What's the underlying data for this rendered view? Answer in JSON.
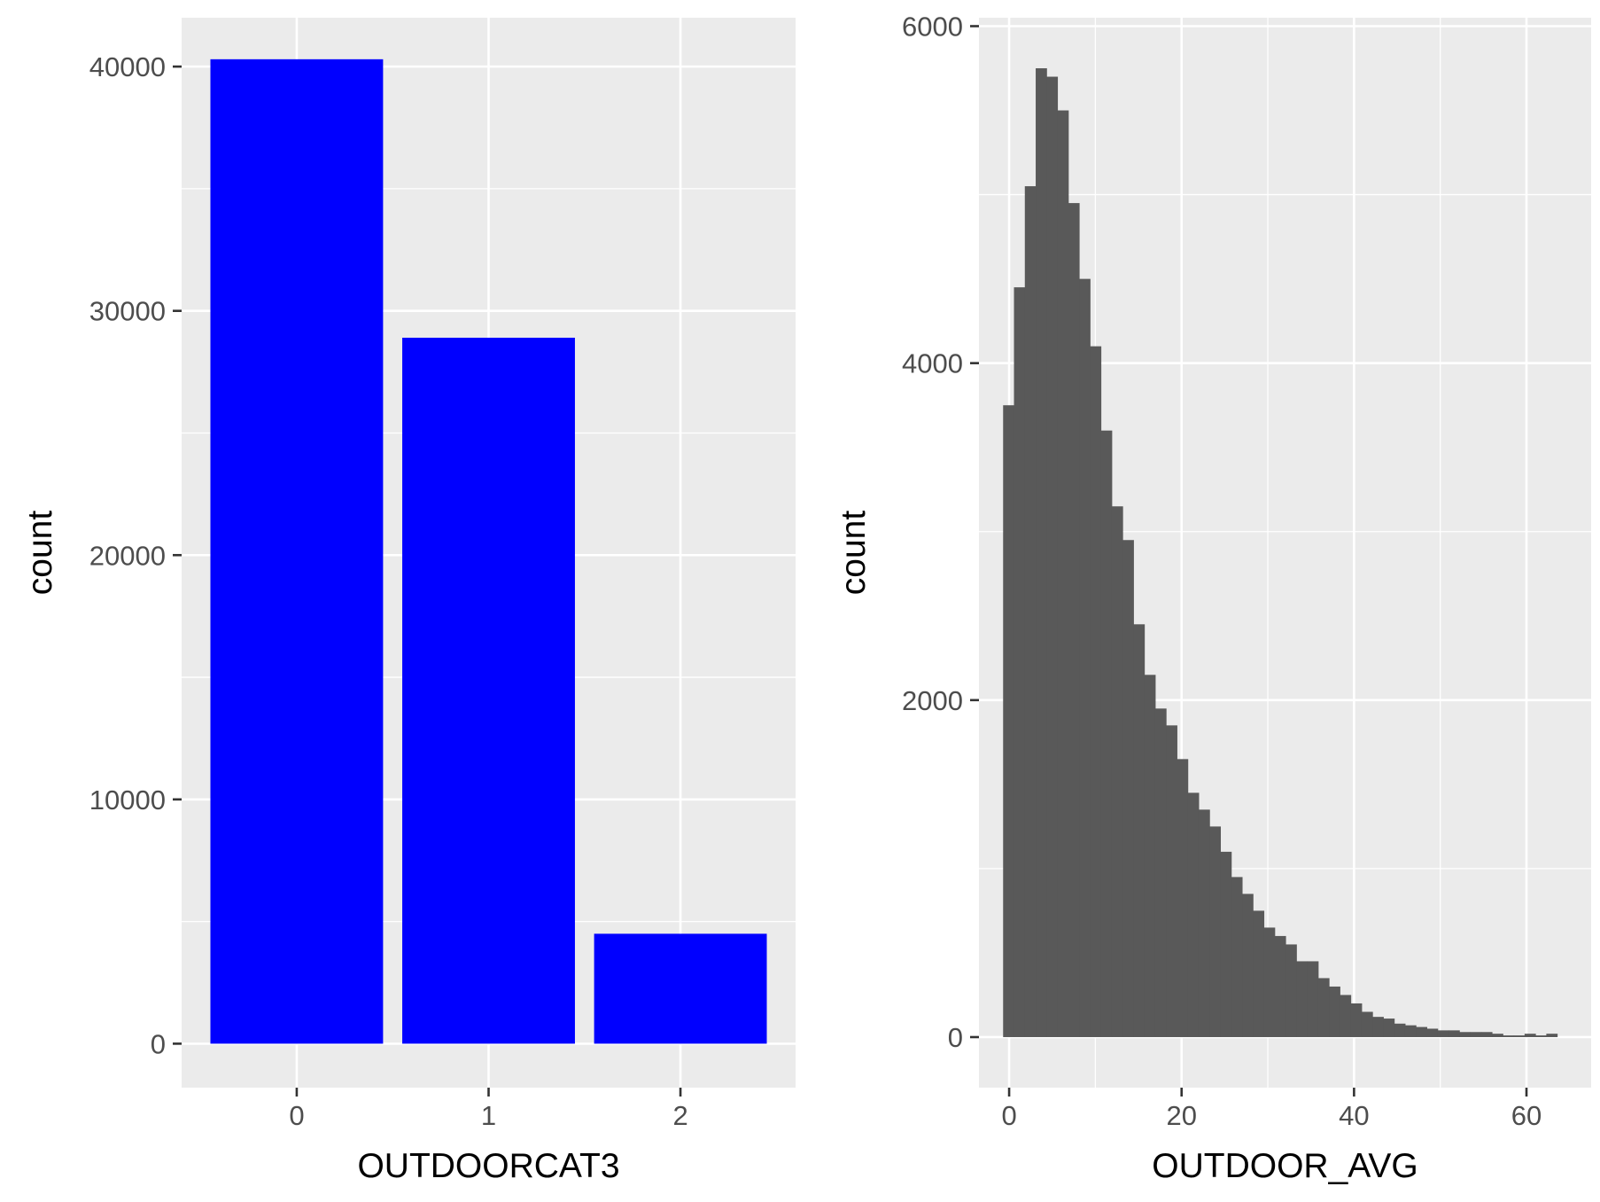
{
  "chart_data": [
    {
      "type": "bar",
      "fill_color": "#0000FF",
      "categories": [
        "0",
        "1",
        "2"
      ],
      "values": [
        40300,
        28900,
        4500
      ],
      "xlabel": "OUTDOORCAT3",
      "ylabel": "count",
      "ylim": [
        -1800,
        42000
      ],
      "y_ticks": [
        0,
        10000,
        20000,
        30000,
        40000
      ],
      "y_tick_labels": [
        "0",
        "10000",
        "20000",
        "30000",
        "40000"
      ],
      "x_tick_labels": [
        "0",
        "1",
        "2"
      ],
      "grid": true,
      "legend": "none"
    },
    {
      "type": "bar",
      "subtype": "histogram",
      "fill_color": "#595959",
      "bin_width": 1.26,
      "bin_start": -0.7,
      "counts": [
        3750,
        4450,
        5050,
        5750,
        5700,
        5500,
        4950,
        4500,
        4100,
        3600,
        3150,
        2950,
        2450,
        2150,
        1950,
        1850,
        1650,
        1450,
        1350,
        1250,
        1100,
        950,
        850,
        750,
        650,
        600,
        550,
        450,
        450,
        350,
        300,
        250,
        200,
        150,
        120,
        110,
        80,
        70,
        60,
        50,
        40,
        40,
        30,
        30,
        30,
        20,
        10,
        10,
        20,
        10,
        20
      ],
      "xlabel": "OUTDOOR_AVG",
      "ylabel": "count",
      "xlim": [
        -3.5,
        67.5
      ],
      "ylim": [
        -300,
        6050
      ],
      "x_ticks": [
        0,
        20,
        40,
        60
      ],
      "x_tick_labels": [
        "0",
        "20",
        "40",
        "60"
      ],
      "y_ticks": [
        0,
        2000,
        4000,
        6000
      ],
      "y_tick_labels": [
        "0",
        "2000",
        "4000",
        "6000"
      ],
      "grid": true,
      "legend": "none"
    }
  ]
}
